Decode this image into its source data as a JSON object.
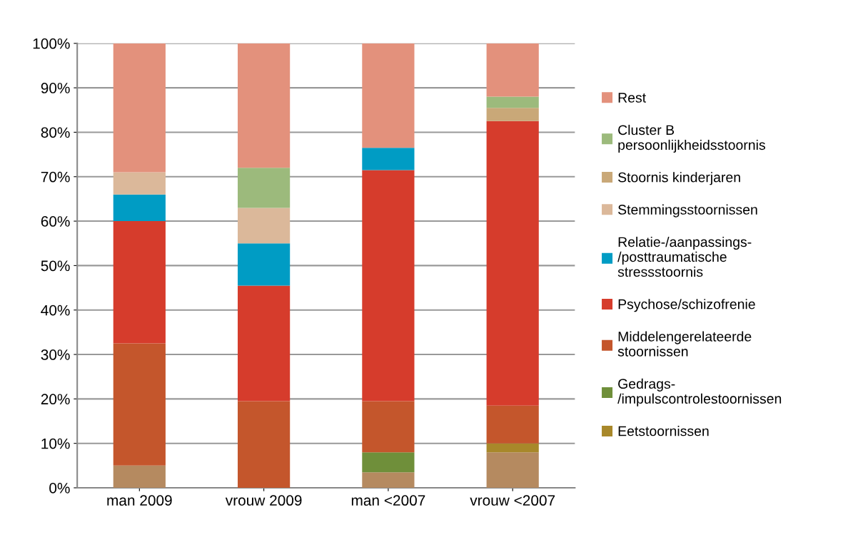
{
  "chart_data": {
    "type": "bar",
    "stacked": true,
    "categories": [
      "man 2009",
      "vrouw 2009",
      "man <2007",
      "vrouw <2007"
    ],
    "series": [
      {
        "color": "#b58a60",
        "values": [
          5,
          0,
          3.5,
          8
        ]
      },
      {
        "name": "Eetstoornissen",
        "color": "#a8882a",
        "values": [
          0,
          0,
          0,
          2
        ]
      },
      {
        "name": "Gedrags-/impulscontrolestoornissen",
        "color": "#6f8f3a",
        "values": [
          0,
          0,
          4.5,
          0
        ]
      },
      {
        "name": "Middelengerelateerde stoornissen",
        "color": "#c4562c",
        "values": [
          27.5,
          19.5,
          11.5,
          8.5
        ]
      },
      {
        "name": "Psychose/schizofrenie",
        "color": "#d63c2c",
        "values": [
          27.5,
          26,
          52,
          64
        ]
      },
      {
        "name": "Relatie-/aanpassings-/posttraumatische stressstoornis",
        "color": "#009cc4",
        "values": [
          6,
          9.5,
          5,
          0
        ]
      },
      {
        "name": "Stemmingsstoornissen",
        "color": "#dbb89a",
        "values": [
          5,
          8,
          0,
          0
        ]
      },
      {
        "name": "Stoornis kinderjaren",
        "color": "#c9a878",
        "values": [
          0,
          0,
          0,
          3
        ]
      },
      {
        "name": "Cluster B persoonlijkheidsstoornis",
        "color": "#9cba7c",
        "values": [
          0,
          9,
          0,
          2.5
        ]
      },
      {
        "name": "Rest",
        "color": "#e3917c",
        "values": [
          29,
          28,
          23.5,
          12
        ]
      }
    ],
    "ylim": [
      0,
      100
    ],
    "yticks": [
      {
        "value": 0,
        "label": "0%"
      },
      {
        "value": 10,
        "label": "10%"
      },
      {
        "value": 20,
        "label": "20%"
      },
      {
        "value": 30,
        "label": "30%"
      },
      {
        "value": 40,
        "label": "40%"
      },
      {
        "value": 50,
        "label": "50%"
      },
      {
        "value": 60,
        "label": "60%"
      },
      {
        "value": 70,
        "label": "70%"
      },
      {
        "value": 80,
        "label": "80%"
      },
      {
        "value": 90,
        "label": "90%"
      },
      {
        "value": 100,
        "label": "100%"
      }
    ],
    "grid": "y",
    "legend": "right"
  }
}
